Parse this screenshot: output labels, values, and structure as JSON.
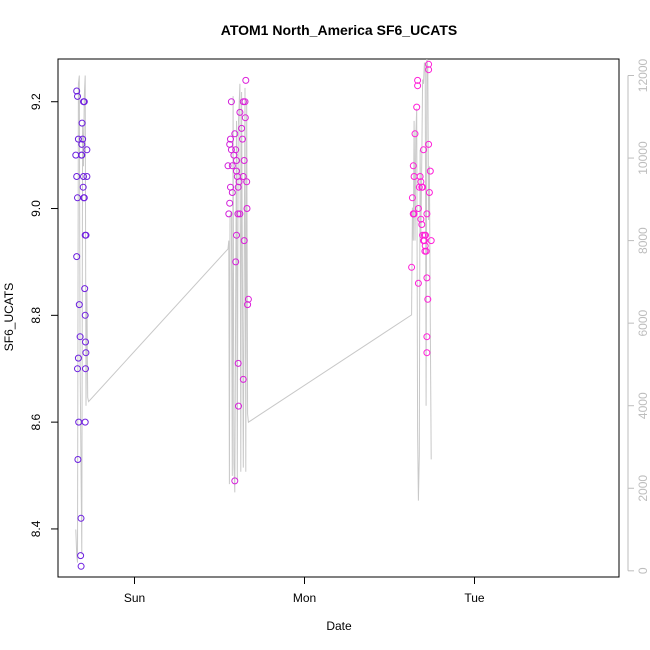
{
  "chart_data": {
    "type": "scatter",
    "title": "ATOM1 North_America SF6_UCATS",
    "xlabel": "Date",
    "ylabel": "SF6_UCATS",
    "x_ticks": [
      "Sun",
      "Mon",
      "Tue"
    ],
    "x_tick_values": [
      1.0,
      2.0,
      3.0
    ],
    "xlim": [
      0.55,
      3.85
    ],
    "ylim": [
      8.31,
      9.28
    ],
    "y_ticks": [
      8.4,
      8.6,
      8.8,
      9.0,
      9.2
    ],
    "y2lim": [
      -150,
      12400
    ],
    "y2_ticks": [
      0,
      2000,
      4000,
      6000,
      8000,
      10000,
      12000
    ],
    "grid": false,
    "point_color_start": "#6a1fe0",
    "point_color_end": "#ff1fd8",
    "line_color": "#c8c8c8",
    "points": [
      [
        0.66,
        9.22
      ],
      [
        0.665,
        9.21
      ],
      [
        0.655,
        9.1
      ],
      [
        0.67,
        9.13
      ],
      [
        0.66,
        9.06
      ],
      [
        0.665,
        9.02
      ],
      [
        0.66,
        8.91
      ],
      [
        0.675,
        8.82
      ],
      [
        0.68,
        8.76
      ],
      [
        0.67,
        8.72
      ],
      [
        0.665,
        8.7
      ],
      [
        0.672,
        8.6
      ],
      [
        0.667,
        8.53
      ],
      [
        0.685,
        8.42
      ],
      [
        0.683,
        8.35
      ],
      [
        0.686,
        8.33
      ],
      [
        0.69,
        9.12
      ],
      [
        0.688,
        9.1
      ],
      [
        0.692,
        9.16
      ],
      [
        0.7,
        9.2
      ],
      [
        0.705,
        9.2
      ],
      [
        0.695,
        9.13
      ],
      [
        0.69,
        9.1
      ],
      [
        0.7,
        9.06
      ],
      [
        0.698,
        9.04
      ],
      [
        0.705,
        9.02
      ],
      [
        0.702,
        9.02
      ],
      [
        0.71,
        8.95
      ],
      [
        0.715,
        8.95
      ],
      [
        0.707,
        8.85
      ],
      [
        0.71,
        8.8
      ],
      [
        0.712,
        8.75
      ],
      [
        0.714,
        8.73
      ],
      [
        0.712,
        8.7
      ],
      [
        0.71,
        8.6
      ],
      [
        0.72,
        9.11
      ],
      [
        0.72,
        9.06
      ],
      [
        1.55,
        9.08
      ],
      [
        1.565,
        9.13
      ],
      [
        1.56,
        9.12
      ],
      [
        1.57,
        9.2
      ],
      [
        1.57,
        9.11
      ],
      [
        1.575,
        9.08
      ],
      [
        1.565,
        9.04
      ],
      [
        1.575,
        9.03
      ],
      [
        1.56,
        9.01
      ],
      [
        1.555,
        8.99
      ],
      [
        1.59,
        9.14
      ],
      [
        1.585,
        9.1
      ],
      [
        1.595,
        9.11
      ],
      [
        1.6,
        9.09
      ],
      [
        1.6,
        9.07
      ],
      [
        1.605,
        9.06
      ],
      [
        1.615,
        9.05
      ],
      [
        1.62,
        9.18
      ],
      [
        1.63,
        9.15
      ],
      [
        1.635,
        9.13
      ],
      [
        1.64,
        9.2
      ],
      [
        1.65,
        9.2
      ],
      [
        1.652,
        9.17
      ],
      [
        1.645,
        9.09
      ],
      [
        1.64,
        9.06
      ],
      [
        1.61,
        9.04
      ],
      [
        1.608,
        8.99
      ],
      [
        1.6,
        8.95
      ],
      [
        1.595,
        8.9
      ],
      [
        1.62,
        8.99
      ],
      [
        1.645,
        8.94
      ],
      [
        1.61,
        8.71
      ],
      [
        1.612,
        8.63
      ],
      [
        1.64,
        8.68
      ],
      [
        1.59,
        8.49
      ],
      [
        1.655,
        9.24
      ],
      [
        1.66,
        9.05
      ],
      [
        1.662,
        9.0
      ],
      [
        1.67,
        8.83
      ],
      [
        1.665,
        8.82
      ],
      [
        2.63,
        8.89
      ],
      [
        2.64,
        8.99
      ],
      [
        2.635,
        9.02
      ],
      [
        2.64,
        9.08
      ],
      [
        2.645,
        9.06
      ],
      [
        2.65,
        9.14
      ],
      [
        2.66,
        9.19
      ],
      [
        2.665,
        9.24
      ],
      [
        2.665,
        9.23
      ],
      [
        2.67,
        9.0
      ],
      [
        2.675,
        9.04
      ],
      [
        2.68,
        9.06
      ],
      [
        2.685,
        9.05
      ],
      [
        2.69,
        9.04
      ],
      [
        2.695,
        9.04
      ],
      [
        2.7,
        9.11
      ],
      [
        2.685,
        8.98
      ],
      [
        2.69,
        8.97
      ],
      [
        2.695,
        8.95
      ],
      [
        2.7,
        8.94
      ],
      [
        2.705,
        8.95
      ],
      [
        2.705,
        8.94
      ],
      [
        2.708,
        8.92
      ],
      [
        2.71,
        8.93
      ],
      [
        2.712,
        8.95
      ],
      [
        2.716,
        8.92
      ],
      [
        2.72,
        8.99
      ],
      [
        2.73,
        9.12
      ],
      [
        2.735,
        9.03
      ],
      [
        2.74,
        9.07
      ],
      [
        2.745,
        8.94
      ],
      [
        2.72,
        8.87
      ],
      [
        2.725,
        8.83
      ],
      [
        2.72,
        8.76
      ],
      [
        2.72,
        8.73
      ],
      [
        2.67,
        8.86
      ],
      [
        2.73,
        9.27
      ],
      [
        2.73,
        9.26
      ],
      [
        2.64,
        8.99
      ],
      [
        2.645,
        8.99
      ]
    ],
    "secondary_line": [
      [
        0.655,
        1000
      ],
      [
        0.66,
        400
      ],
      [
        0.665,
        200
      ],
      [
        0.67,
        11800
      ],
      [
        0.675,
        12000
      ],
      [
        0.68,
        5000
      ],
      [
        0.685,
        2600
      ],
      [
        0.69,
        400
      ],
      [
        0.695,
        10800
      ],
      [
        0.7,
        9800
      ],
      [
        0.705,
        11500
      ],
      [
        0.71,
        12000
      ],
      [
        0.715,
        4000
      ],
      [
        0.72,
        6800
      ],
      [
        0.725,
        4200
      ],
      [
        0.73,
        4100
      ],
      [
        1.55,
        7800
      ],
      [
        1.555,
        8000
      ],
      [
        1.558,
        2100
      ],
      [
        1.562,
        8600
      ],
      [
        1.57,
        8700
      ],
      [
        1.575,
        2300
      ],
      [
        1.58,
        11500
      ],
      [
        1.585,
        2600
      ],
      [
        1.59,
        1900
      ],
      [
        1.6,
        10900
      ],
      [
        1.605,
        2200
      ],
      [
        1.61,
        10700
      ],
      [
        1.62,
        11800
      ],
      [
        1.625,
        2400
      ],
      [
        1.63,
        11600
      ],
      [
        1.64,
        2500
      ],
      [
        1.65,
        11700
      ],
      [
        1.655,
        2400
      ],
      [
        1.66,
        11400
      ],
      [
        1.665,
        3800
      ],
      [
        1.67,
        3600
      ],
      [
        2.63,
        6200
      ],
      [
        2.635,
        8800
      ],
      [
        2.64,
        8000
      ],
      [
        2.645,
        10900
      ],
      [
        2.65,
        8000
      ],
      [
        2.655,
        10500
      ],
      [
        2.66,
        11200
      ],
      [
        2.665,
        3400
      ],
      [
        2.67,
        1700
      ],
      [
        2.675,
        2800
      ],
      [
        2.68,
        10200
      ],
      [
        2.685,
        8100
      ],
      [
        2.69,
        10000
      ],
      [
        2.695,
        11900
      ],
      [
        2.7,
        11800
      ],
      [
        2.705,
        12300
      ],
      [
        2.71,
        12300
      ],
      [
        2.715,
        4000
      ],
      [
        2.72,
        12400
      ],
      [
        2.725,
        12200
      ],
      [
        2.73,
        8500
      ],
      [
        2.735,
        9800
      ],
      [
        2.74,
        6000
      ],
      [
        2.745,
        2700
      ]
    ]
  }
}
